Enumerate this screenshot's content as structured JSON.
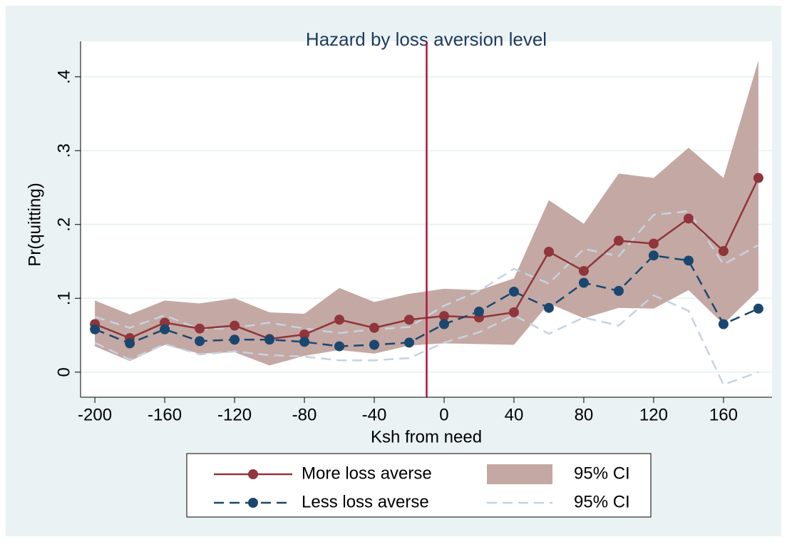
{
  "chart_data": {
    "type": "line",
    "title": "Hazard by loss aversion level",
    "xlabel": "Ksh from need",
    "ylabel": "Pr(quitting)",
    "x": [
      -200,
      -180,
      -160,
      -140,
      -120,
      -100,
      -80,
      -60,
      -40,
      -20,
      0,
      20,
      40,
      60,
      80,
      100,
      120,
      140,
      160,
      180
    ],
    "series": [
      {
        "name": "More loss averse",
        "color": "#90353b",
        "style": "solid",
        "values": [
          0.065,
          0.046,
          0.067,
          0.059,
          0.063,
          0.045,
          0.051,
          0.071,
          0.06,
          0.071,
          0.076,
          0.074,
          0.081,
          0.163,
          0.137,
          0.178,
          0.174,
          0.208,
          0.164,
          0.263
        ]
      },
      {
        "name": "Less loss averse",
        "color": "#1a476f",
        "style": "dashed",
        "values": [
          0.058,
          0.039,
          0.058,
          0.042,
          0.044,
          0.044,
          0.041,
          0.035,
          0.037,
          0.04,
          0.065,
          0.082,
          0.109,
          0.087,
          0.121,
          0.11,
          0.158,
          0.151,
          0.065,
          0.086
        ]
      }
    ],
    "bands": [
      {
        "name": "95% CI",
        "color": "#c4a8a4",
        "style": "fill",
        "upper": [
          0.097,
          0.078,
          0.097,
          0.093,
          0.1,
          0.081,
          0.079,
          0.114,
          0.095,
          0.106,
          0.113,
          0.111,
          0.127,
          0.233,
          0.201,
          0.269,
          0.263,
          0.304,
          0.263,
          0.422
        ],
        "lower": [
          0.035,
          0.015,
          0.037,
          0.025,
          0.027,
          0.009,
          0.022,
          0.03,
          0.025,
          0.036,
          0.039,
          0.038,
          0.037,
          0.093,
          0.073,
          0.087,
          0.086,
          0.111,
          0.065,
          0.111
        ]
      },
      {
        "name": "95% CI",
        "color": "#c6d3df",
        "style": "dashed",
        "upper": [
          0.075,
          0.06,
          0.077,
          0.058,
          0.06,
          0.067,
          0.059,
          0.053,
          0.058,
          0.061,
          0.09,
          0.11,
          0.14,
          0.12,
          0.167,
          0.157,
          0.213,
          0.218,
          0.146,
          0.172
        ],
        "lower": [
          0.04,
          0.017,
          0.038,
          0.024,
          0.028,
          0.023,
          0.021,
          0.016,
          0.016,
          0.019,
          0.04,
          0.054,
          0.077,
          0.052,
          0.074,
          0.063,
          0.104,
          0.083,
          -0.017,
          0
        ]
      }
    ],
    "xline": {
      "value": -10,
      "color": "#b0133a"
    },
    "xlim": [
      -208.2,
      187.8
    ],
    "ylim": [
      -0.034,
      0.448
    ],
    "xticks": [
      -200,
      -160,
      -120,
      -80,
      -40,
      0,
      40,
      80,
      120,
      160
    ],
    "yticks": [
      0,
      {
        "value": 0.1,
        "label": ".1"
      },
      {
        "value": 0.2,
        "label": ".2"
      },
      {
        "value": 0.3,
        "label": ".3"
      },
      {
        "value": 0.4,
        "label": ".4"
      }
    ],
    "grid": true
  }
}
